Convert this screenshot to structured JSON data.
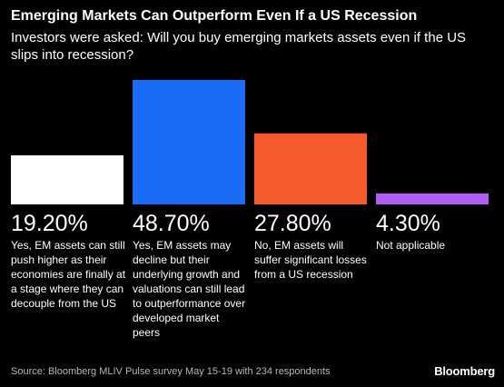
{
  "chart_data": {
    "type": "bar",
    "title": "Emerging Markets Can Outperform Even If a US Recession",
    "subtitle": "Investors were asked: Will you buy emerging markets assets even if the US slips into recession?",
    "categories": [
      "Yes, EM assets can still push higher as their economies are finally at a stage where they can decouple from the US",
      "Yes, EM assets may decline but their underlying growth and valuations can still lead to outperformance over developed market peers",
      "No, EM assets will suffer significant losses from a US recession",
      "Not applicable"
    ],
    "values": [
      19.2,
      48.7,
      27.8,
      4.3
    ],
    "value_labels": [
      "19.20%",
      "48.70%",
      "27.80%",
      "4.30%"
    ],
    "colors": [
      "#ffffff",
      "#1a6cf7",
      "#f55a2c",
      "#b15cf2"
    ],
    "ylim": [
      0,
      48.7
    ],
    "xlabel": "",
    "ylabel": "",
    "grid": false,
    "legend": "none"
  },
  "source": "Source: Bloomberg MLIV Pulse survey May 15-19 with 234 respondents",
  "brand": "Bloomberg"
}
